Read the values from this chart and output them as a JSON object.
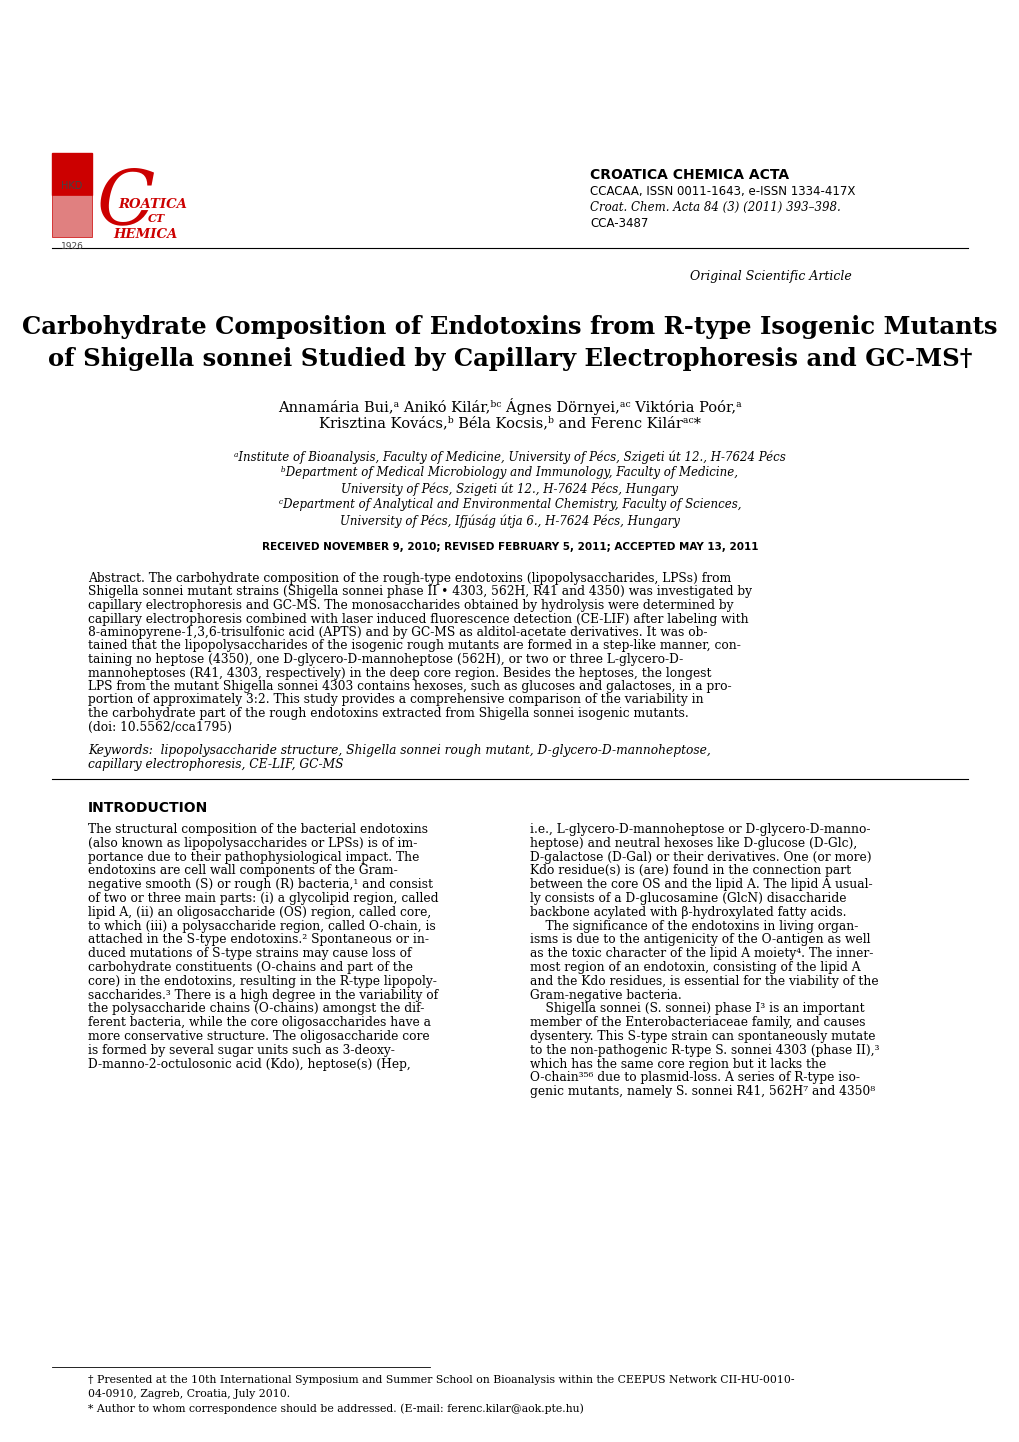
{
  "bg_color": "#ffffff",
  "header": {
    "journal_name": "CROATICA CHEMICA ACTA",
    "issn_line": "CCACAA, ISSN 0011-1643, e-ISSN 1334-417X",
    "journal_ref": "Croat. Chem. Acta 84 (3) (2011) 393–398.",
    "cca_number": "CCA-3487",
    "article_type": "Original Scientific Article"
  },
  "received": "RECEIVED NOVEMBER 9, 2010; REVISED FEBRUARY 5, 2011; ACCEPTED MAY 13, 2011",
  "title_line1": "Carbohydrate Composition of Endotoxins from R-type Isogenic Mutants",
  "title_line2": "of Shigella sonnei Studied by Capillary Electrophoresis and GC-MS†",
  "author_line1": "Annamária Bui,ᵃ Anikó Kilár,ᵇᶜ Ágnes Dörnyei,ᵃᶜ Viktória Poór,ᵃ",
  "author_line2": "Krisztina Kovács,ᵇ Béla Kocsis,ᵇ and Ferenc Kilárᵃᶜ*",
  "affil_a": "ᵃInstitute of Bioanalysis, Faculty of Medicine, University of Pécs, Szigeti út 12., H-7624 Pécs",
  "affil_b1": "ᵇDepartment of Medical Microbiology and Immunology, Faculty of Medicine,",
  "affil_b2": "University of Pécs, Szigeti út 12., H-7624 Pécs, Hungary",
  "affil_c1": "ᶜDepartment of Analytical and Environmental Chemistry, Faculty of Sciences,",
  "affil_c2": "University of Pécs, Ifjúság útja 6., H-7624 Pécs, Hungary",
  "abstract_lines": [
    "Abstract. The carbohydrate composition of the rough-type endotoxins (lipopolysaccharides, LPSs) from",
    "Shigella sonnei mutant strains (Shigella sonnei phase II • 4303, 562H, R41 and 4350) was investigated by",
    "capillary electrophoresis and GC-MS. The monosaccharides obtained by hydrolysis were determined by",
    "capillary electrophoresis combined with laser induced fluorescence detection (CE-LIF) after labeling with",
    "8-aminopyrene-1,3,6-trisulfonic acid (APTS) and by GC-MS as alditol-acetate derivatives. It was ob-",
    "tained that the lipopolysaccharides of the isogenic rough mutants are formed in a step-like manner, con-",
    "taining no heptose (4350), one D-glycero-D-mannoheptose (562H), or two or three L-glycero-D-",
    "mannoheptoses (R41, 4303, respectively) in the deep core region. Besides the heptoses, the longest",
    "LPS from the mutant Shigella sonnei 4303 contains hexoses, such as glucoses and galactoses, in a pro-",
    "portion of approximately 3:2. This study provides a comprehensive comparison of the variability in",
    "the carbohydrate part of the rough endotoxins extracted from Shigella sonnei isogenic mutants.",
    "(doi: 10.5562/cca1795)"
  ],
  "keywords_line1": "Keywords:  lipopolysaccharide structure, Shigella sonnei rough mutant, D-glycero-D-mannoheptose,",
  "keywords_line2": "capillary electrophoresis, CE-LIF, GC-MS",
  "intro_heading": "INTRODUCTION",
  "intro_left_lines": [
    "The structural composition of the bacterial endotoxins",
    "(also known as lipopolysaccharides or LPSs) is of im-",
    "portance due to their pathophysiological impact. The",
    "endotoxins are cell wall components of the Gram-",
    "negative smooth (S) or rough (R) bacteria,¹ and consist",
    "of two or three main parts: (i) a glycolipid region, called",
    "lipid A, (ii) an oligosaccharide (OS) region, called core,",
    "to which (iii) a polysaccharide region, called O-chain, is",
    "attached in the S-type endotoxins.² Spontaneous or in-",
    "duced mutations of S-type strains may cause loss of",
    "carbohydrate constituents (O-chains and part of the",
    "core) in the endotoxins, resulting in the R-type lipopoly-",
    "saccharides.³ There is a high degree in the variability of",
    "the polysaccharide chains (O-chains) amongst the dif-",
    "ferent bacteria, while the core oligosaccharides have a",
    "more conservative structure. The oligosaccharide core",
    "is formed by several sugar units such as 3-deoxy-",
    "D-manno-2-octulosonic acid (Kdo), heptose(s) (Hep,"
  ],
  "intro_right_lines": [
    "i.e., L-glycero-D-mannoheptose or D-glycero-D-manno-",
    "heptose) and neutral hexoses like D-glucose (D-Glc),",
    "D-galactose (D-Gal) or their derivatives. One (or more)",
    "Kdo residue(s) is (are) found in the connection part",
    "between the core OS and the lipid A. The lipid A usual-",
    "ly consists of a D-glucosamine (GlcN) disaccharide",
    "backbone acylated with β-hydroxylated fatty acids.",
    "    The significance of the endotoxins in living organ-",
    "isms is due to the antigenicity of the O-antigen as well",
    "as the toxic character of the lipid A moiety⁴. The inner-",
    "most region of an endotoxin, consisting of the lipid A",
    "and the Kdo residues, is essential for the viability of the",
    "Gram-negative bacteria.",
    "    Shigella sonnei (S. sonnei) phase I³ is an important",
    "member of the Enterobacteriaceae family, and causes",
    "dysentery. This S-type strain can spontaneously mutate",
    "to the non-pathogenic R-type S. sonnei 4303 (phase II),³",
    "which has the same core region but it lacks the",
    "O-chain³⁵⁶ due to plasmid-loss. A series of R-type iso-",
    "genic mutants, namely S. sonnei R41, 562H⁷ and 4350⁸"
  ],
  "footnote1a": "† Presented at the 10th International Symposium and Summer School on Bioanalysis within the CEEPUS Network CII-HU-0010-",
  "footnote1b": "04-0910, Zagreb, Croatia, July 2010.",
  "footnote2": "* Author to whom correspondence should be addressed. (E-mail: ferenc.kilar@aok.pte.hu)"
}
